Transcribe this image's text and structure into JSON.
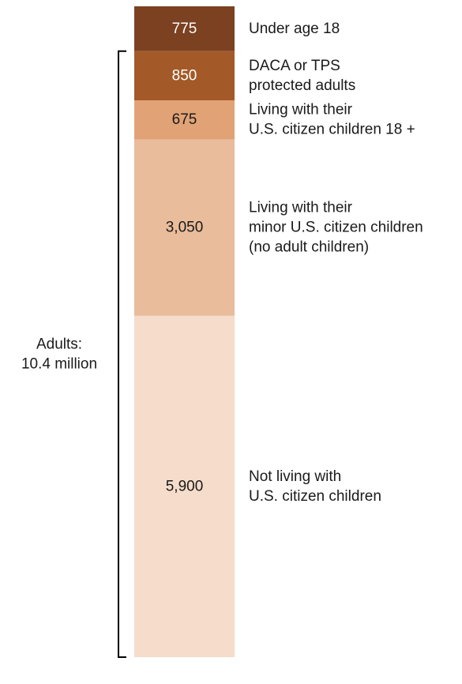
{
  "chart_data": {
    "type": "bar",
    "orientation": "stacked-vertical",
    "unit_note": "",
    "segments": [
      {
        "value": 775,
        "value_label": "775",
        "label_lines": [
          "Under age 18"
        ],
        "color": "#7B4121",
        "value_text_color": "#ffffff"
      },
      {
        "value": 850,
        "value_label": "850",
        "label_lines": [
          "DACA or TPS",
          "protected adults"
        ],
        "color": "#A35A28",
        "value_text_color": "#ffffff"
      },
      {
        "value": 675,
        "value_label": "675",
        "label_lines": [
          "Living with their",
          "U.S. citizen children 18 +"
        ],
        "color": "#E1A376",
        "value_text_color": "#1a1a1a"
      },
      {
        "value": 3050,
        "value_label": "3,050",
        "label_lines": [
          "Living with their",
          "minor U.S. citizen children",
          "(no adult children)"
        ],
        "color": "#E9BC9B",
        "value_text_color": "#1a1a1a"
      },
      {
        "value": 5900,
        "value_label": "5,900",
        "label_lines": [
          "Not living with",
          "U.S. citizen children"
        ],
        "color": "#F6DCCB",
        "value_text_color": "#1a1a1a"
      }
    ],
    "bracket": {
      "label_lines": [
        "Adults:",
        "10.4 million"
      ],
      "from_segment": 1,
      "to_segment": 4
    }
  }
}
